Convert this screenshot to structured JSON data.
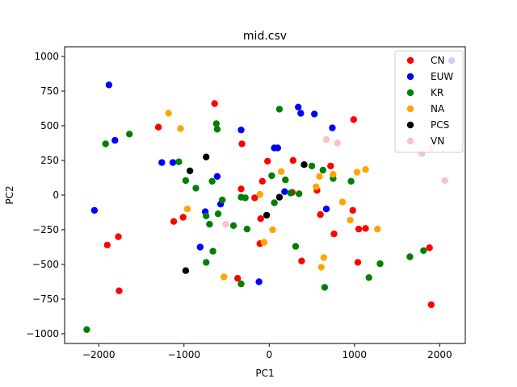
{
  "chart_data": {
    "type": "scatter",
    "title": "mid.csv",
    "xlabel": "PC1",
    "ylabel": "PC2",
    "xlim": [
      -2400,
      2300
    ],
    "ylim": [
      -1070,
      1070
    ],
    "xticks": [
      -2000,
      -1000,
      0,
      1000,
      2000
    ],
    "yticks": [
      -1000,
      -750,
      -500,
      -250,
      0,
      250,
      500,
      750,
      1000
    ],
    "grid": false,
    "legend_position": "top-right",
    "series": [
      {
        "name": "CN",
        "color": "#ff0000",
        "points": [
          [
            -1300,
            490
          ],
          [
            -1900,
            -360
          ],
          [
            -1770,
            -300
          ],
          [
            -1760,
            -690
          ],
          [
            -1120,
            -190
          ],
          [
            -1010,
            -160
          ],
          [
            -640,
            660
          ],
          [
            -320,
            370
          ],
          [
            -330,
            45
          ],
          [
            -370,
            -600
          ],
          [
            -170,
            -20
          ],
          [
            -100,
            -170
          ],
          [
            -80,
            100
          ],
          [
            -110,
            -350
          ],
          [
            -20,
            245
          ],
          [
            270,
            20
          ],
          [
            280,
            250
          ],
          [
            380,
            -475
          ],
          [
            560,
            35
          ],
          [
            600,
            -140
          ],
          [
            720,
            210
          ],
          [
            760,
            -280
          ],
          [
            990,
            545
          ],
          [
            980,
            -110
          ],
          [
            1050,
            -245
          ],
          [
            1130,
            -240
          ],
          [
            1040,
            -485
          ],
          [
            1880,
            -380
          ],
          [
            1900,
            -790
          ]
        ]
      },
      {
        "name": "EUW",
        "color": "#0000ff",
        "points": [
          [
            -1880,
            795
          ],
          [
            -2050,
            -110
          ],
          [
            -1810,
            395
          ],
          [
            -1260,
            235
          ],
          [
            -1130,
            235
          ],
          [
            -810,
            -375
          ],
          [
            -750,
            -120
          ],
          [
            -610,
            135
          ],
          [
            -570,
            -65
          ],
          [
            -330,
            470
          ],
          [
            -120,
            -625
          ],
          [
            60,
            340
          ],
          [
            100,
            340
          ],
          [
            180,
            25
          ],
          [
            340,
            635
          ],
          [
            370,
            590
          ],
          [
            530,
            585
          ],
          [
            670,
            -100
          ],
          [
            740,
            485
          ],
          [
            2140,
            970
          ]
        ]
      },
      {
        "name": "KR",
        "color": "#008000",
        "points": [
          [
            -2140,
            -970
          ],
          [
            -1920,
            370
          ],
          [
            -1640,
            440
          ],
          [
            -1060,
            240
          ],
          [
            -980,
            105
          ],
          [
            -860,
            50
          ],
          [
            -740,
            -150
          ],
          [
            -700,
            -210
          ],
          [
            -670,
            100
          ],
          [
            -620,
            515
          ],
          [
            -610,
            475
          ],
          [
            -600,
            -135
          ],
          [
            -550,
            -35
          ],
          [
            -660,
            -405
          ],
          [
            -740,
            -485
          ],
          [
            -420,
            -220
          ],
          [
            -330,
            -15
          ],
          [
            -330,
            -640
          ],
          [
            -280,
            -20
          ],
          [
            -260,
            -245
          ],
          [
            30,
            140
          ],
          [
            60,
            -55
          ],
          [
            120,
            620
          ],
          [
            190,
            110
          ],
          [
            250,
            15
          ],
          [
            310,
            -370
          ],
          [
            350,
            10
          ],
          [
            500,
            210
          ],
          [
            630,
            180
          ],
          [
            650,
            -665
          ],
          [
            750,
            120
          ],
          [
            960,
            100
          ],
          [
            1170,
            -595
          ],
          [
            1300,
            -495
          ],
          [
            1650,
            -445
          ],
          [
            1810,
            -400
          ]
        ]
      },
      {
        "name": "NA",
        "color": "#ffa500",
        "points": [
          [
            -1180,
            590
          ],
          [
            -1040,
            480
          ],
          [
            -960,
            -100
          ],
          [
            -530,
            -590
          ],
          [
            -110,
            5
          ],
          [
            -60,
            -340
          ],
          [
            40,
            -250
          ],
          [
            140,
            170
          ],
          [
            550,
            60
          ],
          [
            590,
            135
          ],
          [
            610,
            -520
          ],
          [
            640,
            -450
          ],
          [
            750,
            150
          ],
          [
            860,
            -50
          ],
          [
            950,
            -180
          ],
          [
            1030,
            165
          ],
          [
            1130,
            185
          ],
          [
            1270,
            -245
          ]
        ]
      },
      {
        "name": "PCS",
        "color": "#000000",
        "points": [
          [
            -980,
            -545
          ],
          [
            -930,
            175
          ],
          [
            -740,
            275
          ],
          [
            -30,
            -145
          ],
          [
            120,
            -15
          ],
          [
            410,
            220
          ]
        ]
      },
      {
        "name": "VN",
        "color": "#ffc0cb",
        "points": [
          [
            -510,
            -210
          ],
          [
            670,
            400
          ],
          [
            800,
            375
          ],
          [
            1790,
            300
          ],
          [
            1900,
            340
          ],
          [
            2060,
            105
          ]
        ]
      }
    ]
  }
}
